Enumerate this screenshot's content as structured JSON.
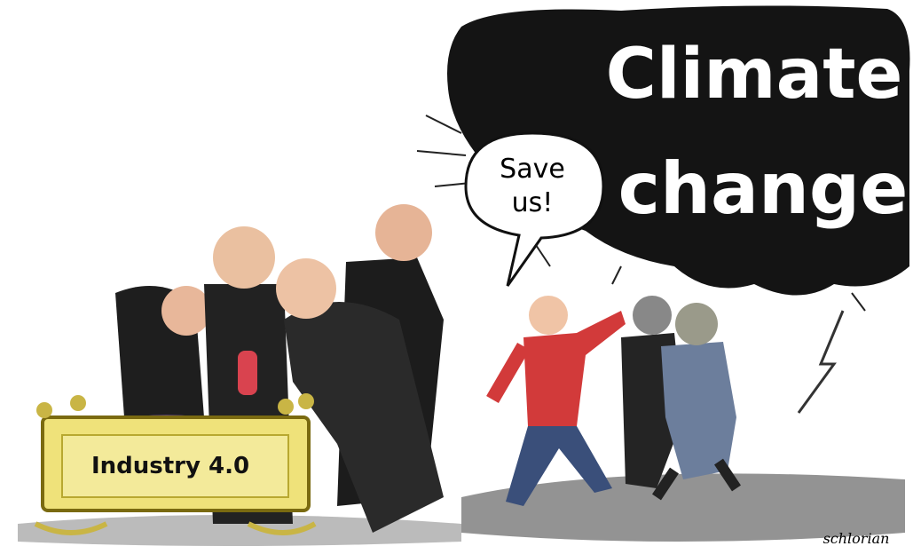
{
  "cloud_text": [
    "Climate",
    "change"
  ],
  "speech_bubble": [
    "Save",
    "us!"
  ],
  "cradle_label": "Industry 4.0",
  "signature": "schlorian"
}
